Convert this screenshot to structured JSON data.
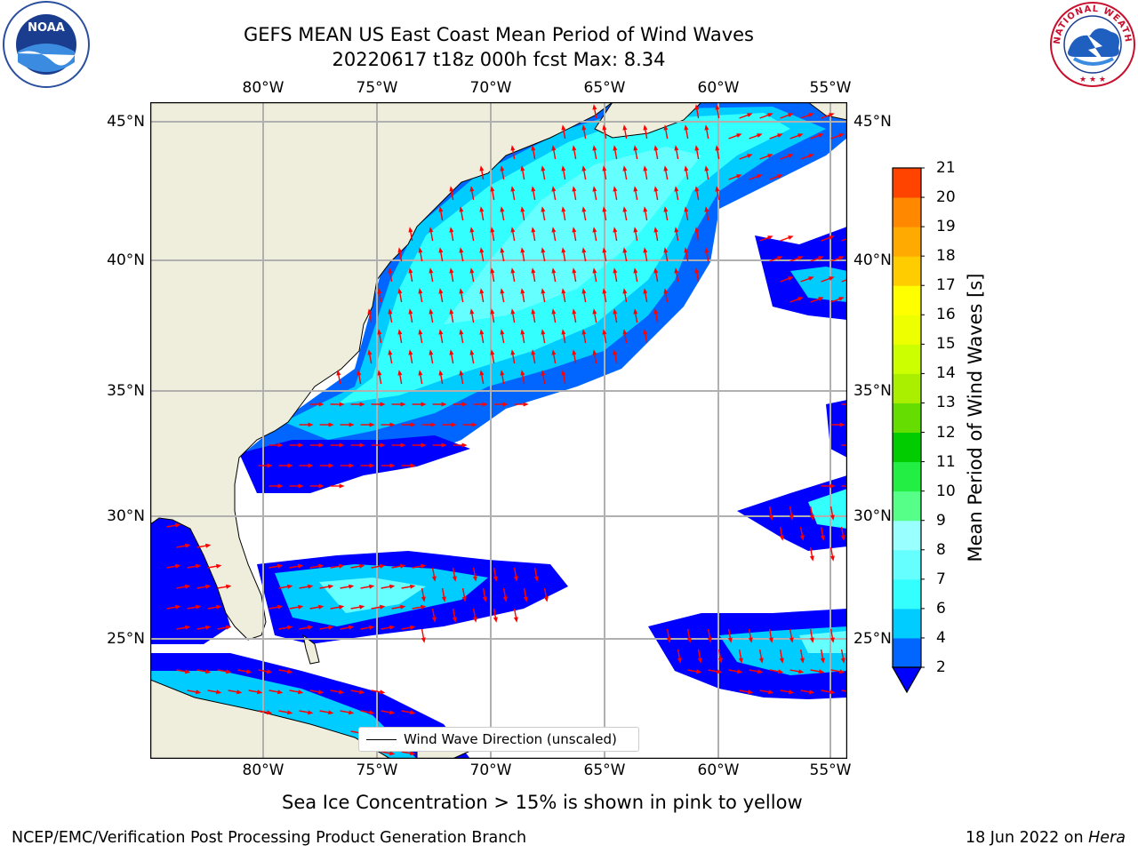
{
  "title": {
    "line1": "GEFS MEAN US East Coast Mean Period of Wind Waves",
    "line2": "20220617 t18z 000h fcst   Max: 8.34"
  },
  "map": {
    "lon_ticks": [
      "80°W",
      "75°W",
      "70°W",
      "65°W",
      "60°W",
      "55°W"
    ],
    "lat_ticks": [
      "45°N",
      "40°N",
      "35°N",
      "30°N",
      "25°N"
    ],
    "extent": {
      "lon": [
        -85,
        -54.3
      ],
      "lat": [
        20,
        46
      ]
    },
    "colors": {
      "land": "#efeedc",
      "ocean_low": "#0000ff",
      "arrow": "#ff0000",
      "grid": "#b0b0b0"
    },
    "legend_label": "Wind Wave Direction (unscaled)"
  },
  "colorbar": {
    "title": "Mean Period of Wind Waves [s]",
    "levels": [
      "2",
      "4",
      "6",
      "7",
      "8",
      "9",
      "10",
      "11",
      "12",
      "13",
      "14",
      "15",
      "16",
      "17",
      "18",
      "19",
      "20",
      "21"
    ],
    "colors": [
      "#0066ff",
      "#00ccff",
      "#33ffff",
      "#66ffff",
      "#99ffff",
      "#55ff88",
      "#22ee44",
      "#00cc00",
      "#66dd00",
      "#aaee00",
      "#ccff00",
      "#eeff00",
      "#ffff00",
      "#ffcc00",
      "#ffaa00",
      "#ff8800",
      "#ff4400",
      "#ff0000"
    ],
    "extend_color": "#0000ff"
  },
  "caption": "Sea Ice Concentration > 15% is shown in pink to yellow",
  "footer": {
    "left": "NCEP/EMC/Verification Post Processing Product Generation Branch",
    "date": "18 Jun 2022 on ",
    "host": "Hera"
  },
  "logos": {
    "noaa": "NOAA",
    "nws": "NATIONAL WEATHER SERVICE"
  }
}
